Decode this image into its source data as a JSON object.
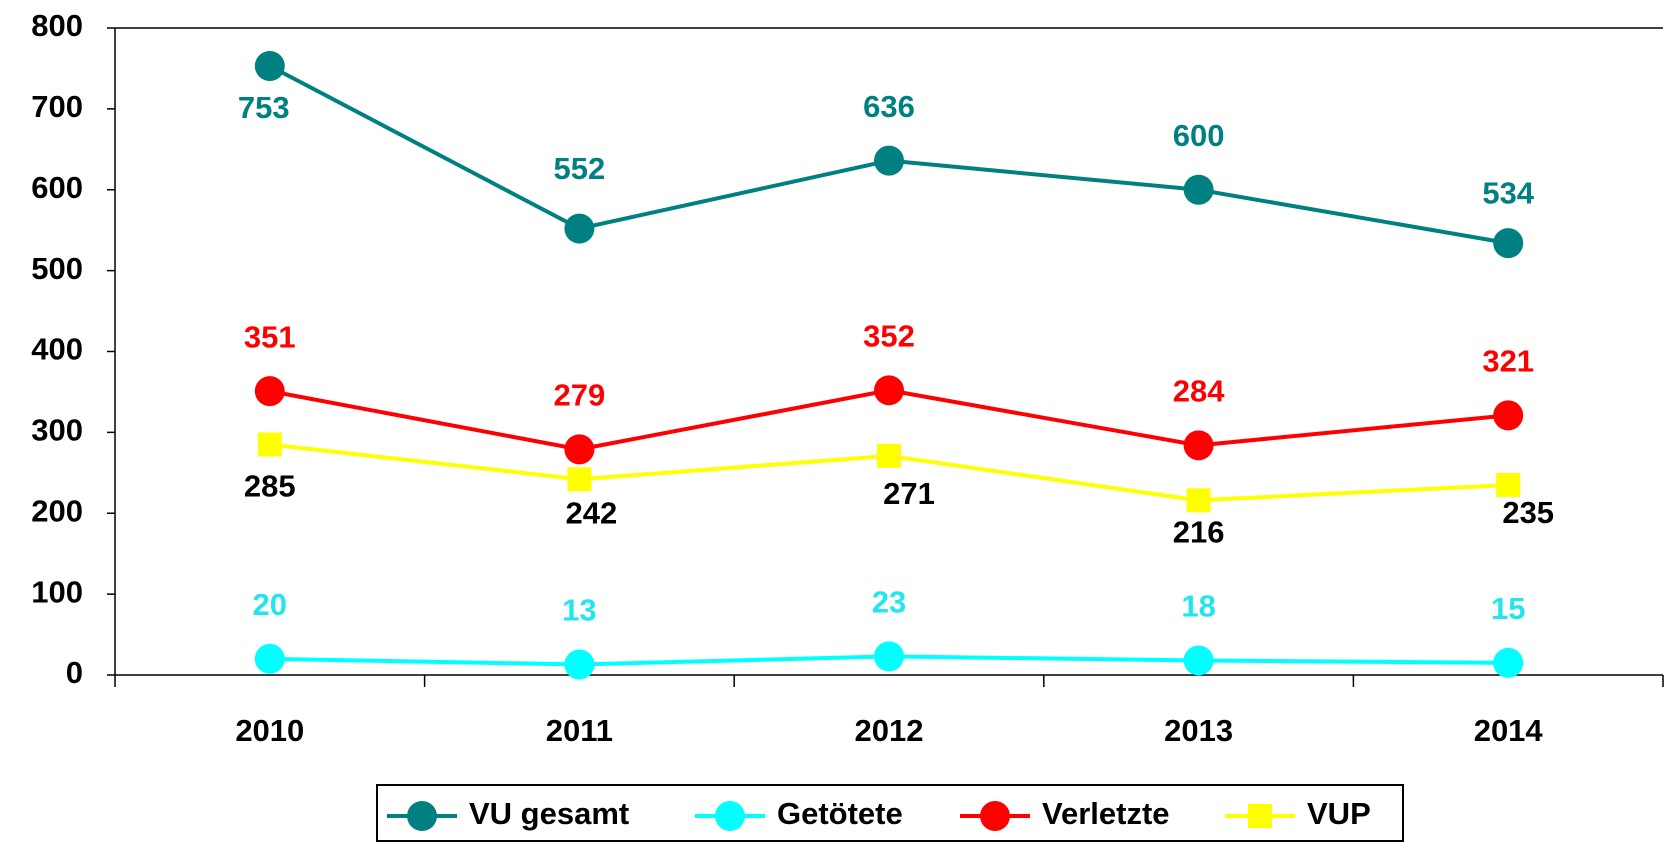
{
  "chart_data": {
    "type": "line",
    "categories": [
      "2010",
      "2011",
      "2012",
      "2013",
      "2014"
    ],
    "series": [
      {
        "name": "VU gesamt",
        "color": "#008080",
        "label_color": "#008080",
        "marker": "circle",
        "values": [
          753,
          552,
          636,
          600,
          534
        ]
      },
      {
        "name": "Getötete",
        "color": "#00ffff",
        "label_color": "#22e6ee",
        "marker": "circle",
        "values": [
          20,
          13,
          23,
          18,
          15
        ]
      },
      {
        "name": "Verletzte",
        "color": "#ff0000",
        "label_color": "#ff0000",
        "marker": "circle",
        "values": [
          351,
          279,
          352,
          284,
          321
        ]
      },
      {
        "name": "VUP",
        "color": "#ffff00",
        "label_color": "#000000",
        "marker": "square",
        "values": [
          285,
          242,
          271,
          216,
          235
        ]
      }
    ],
    "ylim": [
      0,
      800
    ],
    "yticks": [
      0,
      100,
      200,
      300,
      400,
      500,
      600,
      700,
      800
    ],
    "grid": false,
    "legend": "bottom"
  }
}
